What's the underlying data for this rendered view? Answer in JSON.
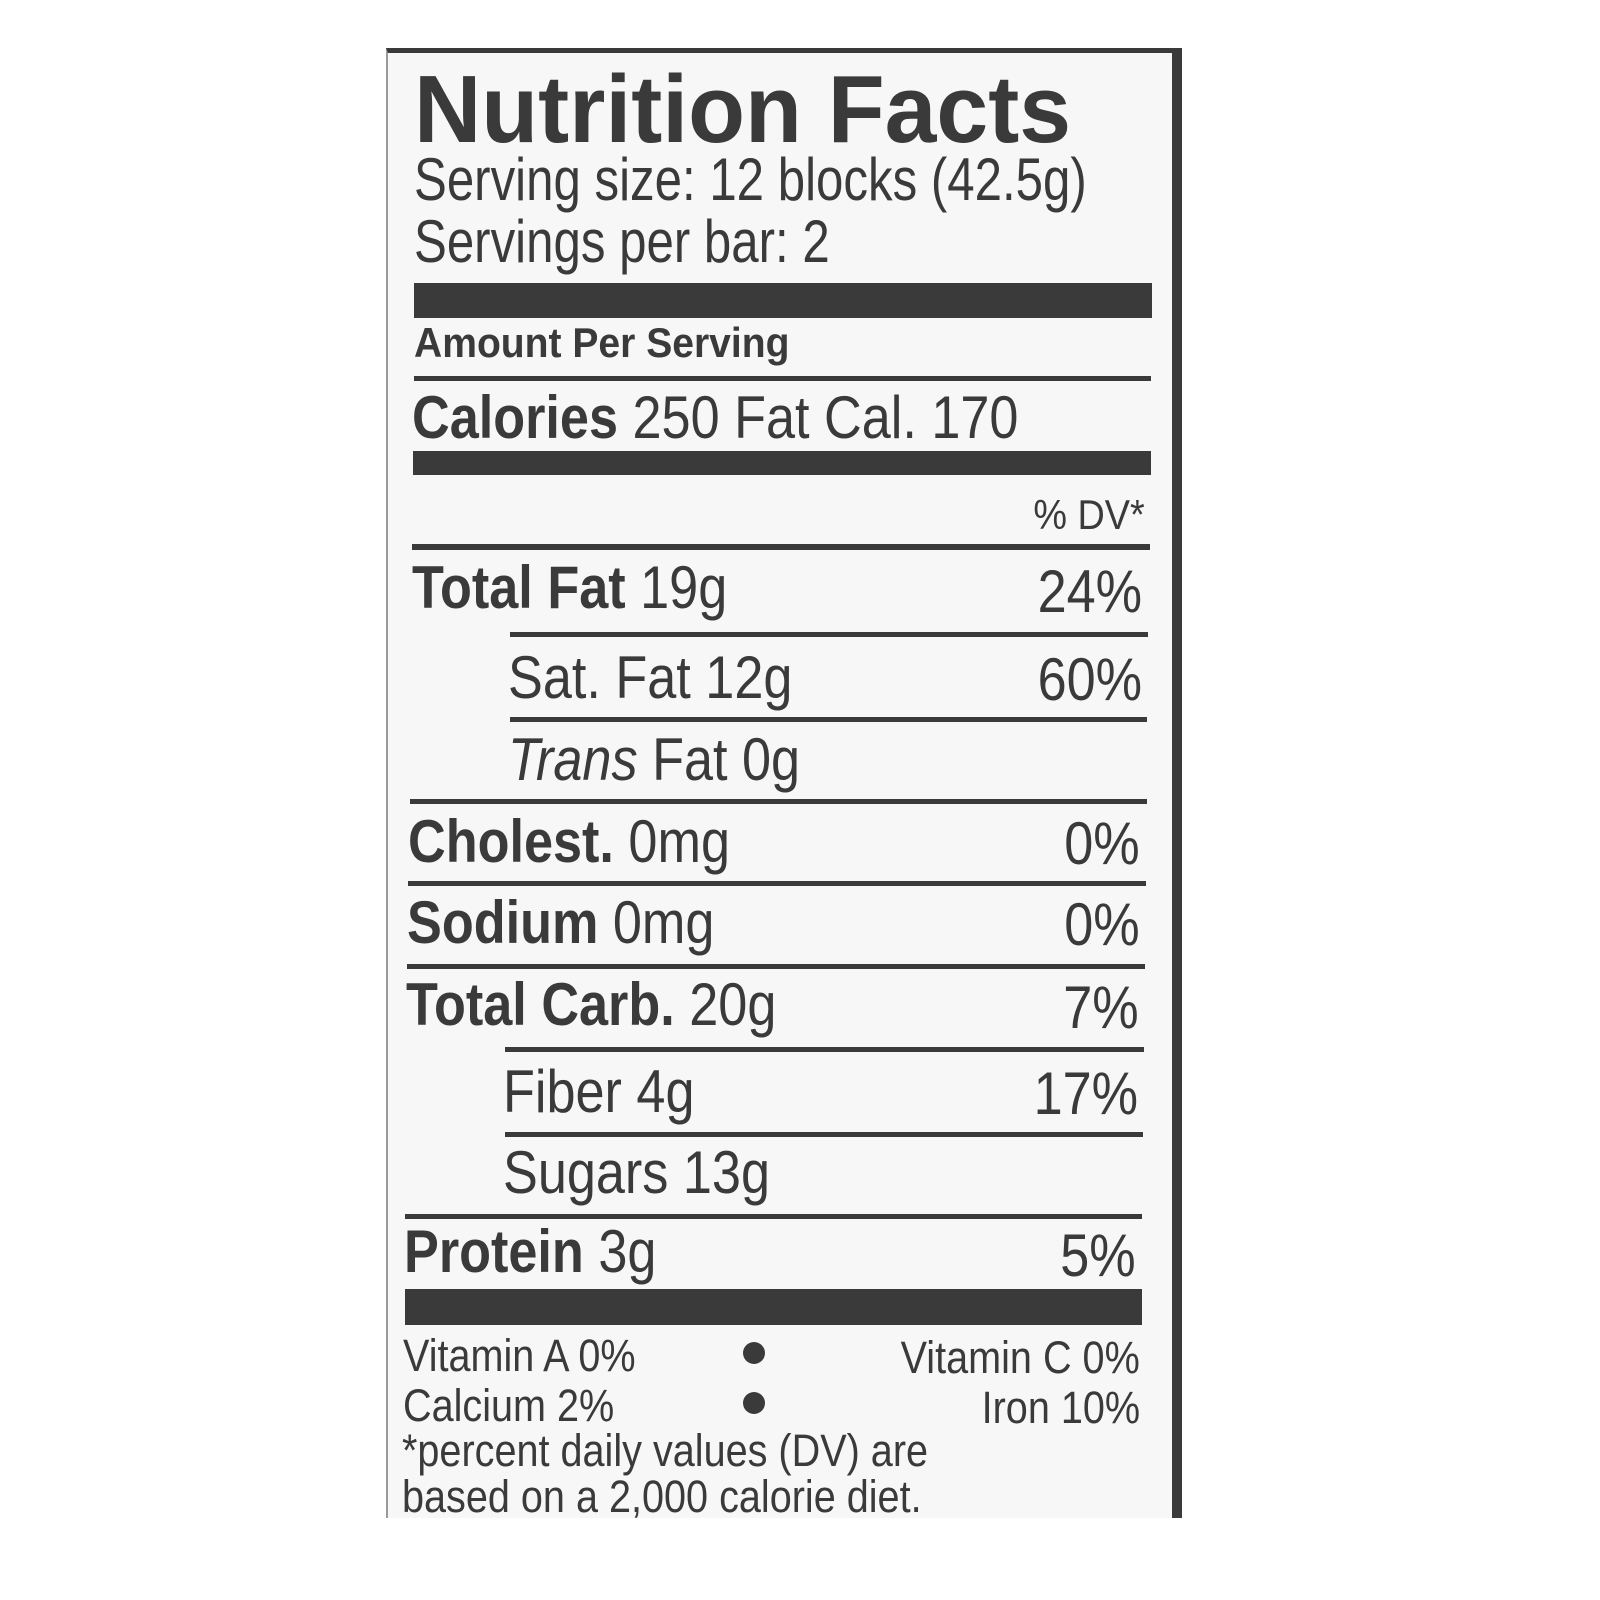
{
  "title": "Nutrition Facts",
  "serving_size": "Serving size: 12 blocks (42.5g)",
  "servings_per": "Servings per bar: 2",
  "amount_per_serving": "Amount Per Serving",
  "calories": {
    "label": "Calories",
    "value": "250",
    "fat_cal_label": "Fat Cal.",
    "fat_cal_value": "170"
  },
  "dv_header": "% DV*",
  "nutrients": [
    {
      "label": "Total Fat",
      "amount": "19g",
      "dv": "24%"
    },
    {
      "label": "Sat. Fat",
      "amount": "12g",
      "dv": "60%"
    },
    {
      "label": "Trans",
      "amount": "Fat 0g",
      "dv": ""
    },
    {
      "label": "Cholest.",
      "amount": "0mg",
      "dv": "0%"
    },
    {
      "label": "Sodium",
      "amount": "0mg",
      "dv": "0%"
    },
    {
      "label": "Total Carb.",
      "amount": "20g",
      "dv": "7%"
    },
    {
      "label": "Fiber",
      "amount": "4g",
      "dv": "17%"
    },
    {
      "label": "Sugars",
      "amount": "13g",
      "dv": ""
    },
    {
      "label": "Protein",
      "amount": "3g",
      "dv": "5%"
    }
  ],
  "vitamins": {
    "vitamin_a": "Vitamin A 0%",
    "vitamin_c": "Vitamin C 0%",
    "calcium": "Calcium 2%",
    "iron": "Iron 10%"
  },
  "footnote": [
    "*percent daily values (DV) are",
    "based on a 2,000 calorie diet."
  ]
}
